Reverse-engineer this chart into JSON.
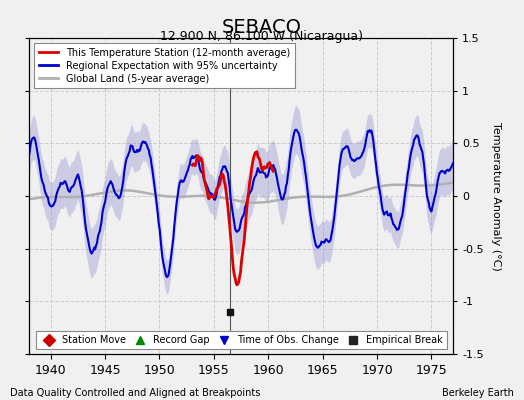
{
  "title": "SEBACO",
  "subtitle": "12.900 N, 86.100 W (Nicaragua)",
  "ylabel": "Temperature Anomaly (°C)",
  "xlabel_left": "Data Quality Controlled and Aligned at Breakpoints",
  "xlabel_right": "Berkeley Earth",
  "xlim": [
    1938.0,
    1977.0
  ],
  "ylim": [
    -1.5,
    1.5
  ],
  "xticks": [
    1940,
    1945,
    1950,
    1955,
    1960,
    1965,
    1970,
    1975
  ],
  "yticks_right": [
    -1.5,
    -1.0,
    -0.5,
    0,
    0.5,
    1.0,
    1.5
  ],
  "ytick_labels_right": [
    "-1.5",
    "-1",
    "-0.5",
    "0",
    "0.5",
    "1",
    "1.5"
  ],
  "background_color": "#f0f0f0",
  "plot_background": "#f0f0f0",
  "shade_color": "#8888cc",
  "shade_alpha": 0.35,
  "blue_line_color": "#0000cc",
  "red_line_color": "#dd0000",
  "gray_line_color": "#b0b0b0",
  "grid_color": "#cccccc",
  "vline_color": "#555555",
  "vline_x": 1956.5,
  "marker_x_empirical": 1956.5,
  "marker_y_empirical": -1.1,
  "legend_entries": [
    {
      "label": "This Temperature Station (12-month average)",
      "color": "#dd0000",
      "lw": 2
    },
    {
      "label": "Regional Expectation with 95% uncertainty",
      "color": "#0000cc",
      "lw": 2
    },
    {
      "label": "Global Land (5-year average)",
      "color": "#b0b0b0",
      "lw": 2
    }
  ],
  "bottom_legend": [
    {
      "label": "Station Move",
      "marker": "D",
      "color": "#cc0000"
    },
    {
      "label": "Record Gap",
      "marker": "^",
      "color": "#008800"
    },
    {
      "label": "Time of Obs. Change",
      "marker": "v",
      "color": "#0000cc"
    },
    {
      "label": "Empirical Break",
      "marker": "s",
      "color": "#222222"
    }
  ]
}
